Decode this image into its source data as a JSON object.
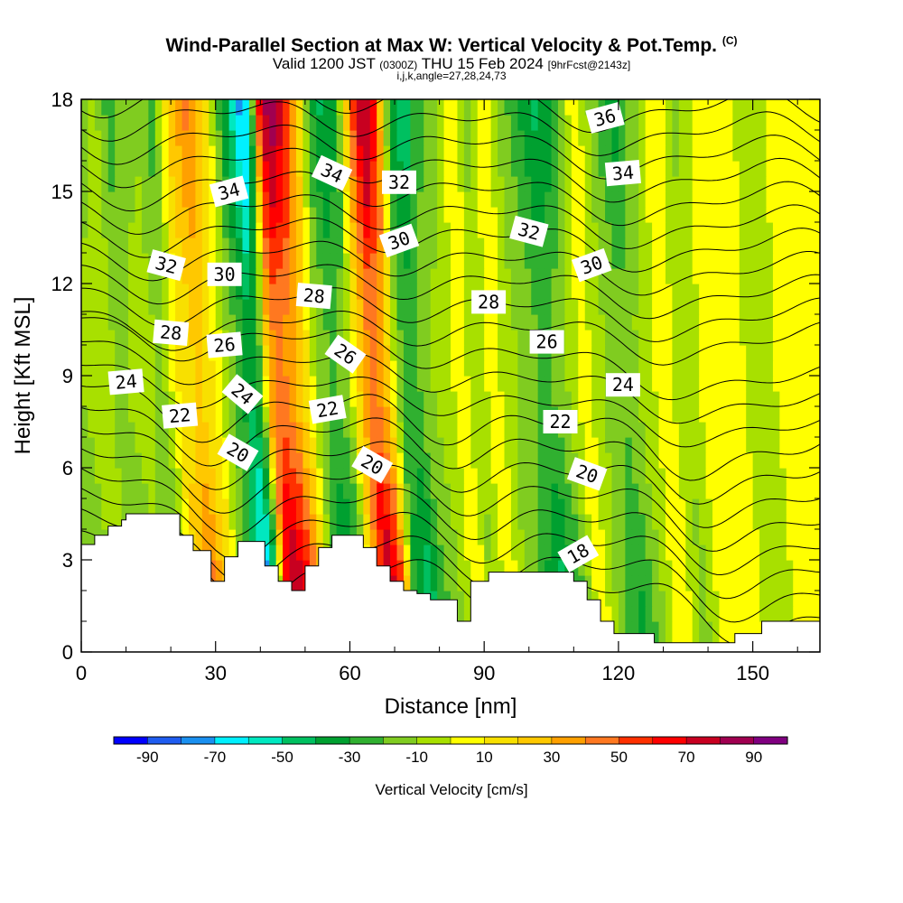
{
  "title": {
    "main": "Wind-Parallel Section at Max W: Vertical Velocity & Pot.Temp.",
    "copyright": "(C)",
    "valid_prefix": "Valid 1200 JST",
    "valid_utc": "(0300Z)",
    "valid_date": "THU 15 Feb 2024",
    "forecast": "[9hrFcst@2143z]",
    "indices": "i,j,k,angle=27,28,24,73"
  },
  "chart_data": {
    "type": "heatmap",
    "xlabel": "Distance [nm]",
    "ylabel": "Height [Kft MSL]",
    "xlim": [
      0,
      165
    ],
    "ylim": [
      0,
      18
    ],
    "x_ticks": [
      0,
      30,
      60,
      90,
      120,
      150
    ],
    "y_ticks": [
      0,
      3,
      6,
      9,
      12,
      15,
      18
    ],
    "colorbar": {
      "label": "Vertical Velocity [cm/s]",
      "tick_labels": [
        -90,
        -70,
        -50,
        -30,
        -10,
        10,
        30,
        50,
        70,
        90
      ],
      "levels": [
        -100,
        -90,
        -80,
        -70,
        -60,
        -50,
        -40,
        -30,
        -20,
        -10,
        0,
        10,
        20,
        30,
        40,
        50,
        60,
        70,
        80,
        90,
        100
      ],
      "colors": [
        "#0000ff",
        "#1f5cf0",
        "#1a90f0",
        "#00f0ff",
        "#00e8c0",
        "#00c060",
        "#00a030",
        "#30b030",
        "#80cc20",
        "#a8e000",
        "#ffff00",
        "#f8e000",
        "#ffc800",
        "#ffa000",
        "#ff7820",
        "#ff3000",
        "#ff0000",
        "#c80020",
        "#a00050",
        "#800080"
      ]
    },
    "vertical_velocity_bands": [
      {
        "x": 0,
        "w": -20
      },
      {
        "x": 5,
        "w": -5
      },
      {
        "x": 8,
        "w": -25
      },
      {
        "x": 14,
        "w": -10
      },
      {
        "x": 18,
        "w": -25
      },
      {
        "x": 22,
        "w": 25
      },
      {
        "x": 26,
        "w": 45
      },
      {
        "x": 30,
        "w": 15
      },
      {
        "x": 33,
        "w": -25
      },
      {
        "x": 36,
        "w": -55
      },
      {
        "x": 38,
        "w": -80
      },
      {
        "x": 40,
        "w": -40
      },
      {
        "x": 42,
        "w": 65
      },
      {
        "x": 44,
        "w": 90
      },
      {
        "x": 47,
        "w": 70
      },
      {
        "x": 50,
        "w": 30
      },
      {
        "x": 53,
        "w": -25
      },
      {
        "x": 56,
        "w": -45
      },
      {
        "x": 59,
        "w": -30
      },
      {
        "x": 62,
        "w": 40
      },
      {
        "x": 65,
        "w": 90
      },
      {
        "x": 68,
        "w": 55
      },
      {
        "x": 71,
        "w": -35
      },
      {
        "x": 74,
        "w": -50
      },
      {
        "x": 77,
        "w": -25
      },
      {
        "x": 80,
        "w": -15
      },
      {
        "x": 85,
        "w": 10
      },
      {
        "x": 88,
        "w": -15
      },
      {
        "x": 92,
        "w": 10
      },
      {
        "x": 96,
        "w": -15
      },
      {
        "x": 100,
        "w": -30
      },
      {
        "x": 104,
        "w": -45
      },
      {
        "x": 108,
        "w": -25
      },
      {
        "x": 112,
        "w": 10
      },
      {
        "x": 117,
        "w": -20
      },
      {
        "x": 121,
        "w": -35
      },
      {
        "x": 125,
        "w": -15
      },
      {
        "x": 130,
        "w": 10
      },
      {
        "x": 135,
        "w": -15
      },
      {
        "x": 140,
        "w": 10
      },
      {
        "x": 146,
        "w": 5
      },
      {
        "x": 152,
        "w": -10
      },
      {
        "x": 158,
        "w": 10
      },
      {
        "x": 165,
        "w": 5
      }
    ],
    "terrain": [
      [
        0,
        3.5
      ],
      [
        3,
        3.5
      ],
      [
        3,
        3.8
      ],
      [
        6,
        3.8
      ],
      [
        6,
        4.1
      ],
      [
        9,
        4.1
      ],
      [
        9,
        4.3
      ],
      [
        10,
        4.3
      ],
      [
        10,
        4.5
      ],
      [
        22,
        4.5
      ],
      [
        22,
        3.8
      ],
      [
        25,
        3.8
      ],
      [
        25,
        3.3
      ],
      [
        29,
        3.3
      ],
      [
        29,
        2.3
      ],
      [
        32,
        2.3
      ],
      [
        32,
        3.1
      ],
      [
        35,
        3.1
      ],
      [
        35,
        3.6
      ],
      [
        41,
        3.6
      ],
      [
        41,
        2.8
      ],
      [
        44,
        2.8
      ],
      [
        44,
        2.3
      ],
      [
        47,
        2.3
      ],
      [
        47,
        2.0
      ],
      [
        50,
        2.0
      ],
      [
        50,
        2.8
      ],
      [
        53,
        2.8
      ],
      [
        53,
        3.4
      ],
      [
        56,
        3.4
      ],
      [
        56,
        3.8
      ],
      [
        63,
        3.8
      ],
      [
        63,
        3.4
      ],
      [
        66,
        3.4
      ],
      [
        66,
        2.8
      ],
      [
        69,
        2.8
      ],
      [
        69,
        2.3
      ],
      [
        72,
        2.3
      ],
      [
        72,
        2.0
      ],
      [
        75,
        2.0
      ],
      [
        75,
        1.9
      ],
      [
        78,
        1.9
      ],
      [
        78,
        1.7
      ],
      [
        84,
        1.7
      ],
      [
        84,
        1.0
      ],
      [
        87,
        1.0
      ],
      [
        87,
        2.3
      ],
      [
        91,
        2.3
      ],
      [
        91,
        2.6
      ],
      [
        110,
        2.6
      ],
      [
        110,
        2.3
      ],
      [
        113,
        2.3
      ],
      [
        113,
        1.7
      ],
      [
        116,
        1.7
      ],
      [
        116,
        1.0
      ],
      [
        119,
        1.0
      ],
      [
        119,
        0.6
      ],
      [
        128,
        0.6
      ],
      [
        128,
        0.3
      ],
      [
        146,
        0.3
      ],
      [
        146,
        0.6
      ],
      [
        152,
        0.6
      ],
      [
        152,
        1.0
      ],
      [
        165,
        1.0
      ]
    ],
    "theta_contours": {
      "units": "C",
      "levels": [
        18,
        20,
        22,
        24,
        26,
        28,
        30,
        32,
        34,
        36
      ],
      "labels": [
        {
          "text": "24",
          "x": 10,
          "y": 8.8,
          "rot": -5
        },
        {
          "text": "22",
          "x": 22,
          "y": 7.7,
          "rot": -5
        },
        {
          "text": "20",
          "x": 35,
          "y": 6.5,
          "rot": 30
        },
        {
          "text": "24",
          "x": 36,
          "y": 8.4,
          "rot": 40
        },
        {
          "text": "26",
          "x": 32,
          "y": 10.0,
          "rot": -5
        },
        {
          "text": "30",
          "x": 32,
          "y": 12.3,
          "rot": 0
        },
        {
          "text": "32",
          "x": 19,
          "y": 12.6,
          "rot": 15
        },
        {
          "text": "28",
          "x": 20,
          "y": 10.4,
          "rot": 5
        },
        {
          "text": "34",
          "x": 33,
          "y": 15.0,
          "rot": -15
        },
        {
          "text": "28",
          "x": 52,
          "y": 11.6,
          "rot": 5
        },
        {
          "text": "26",
          "x": 59,
          "y": 9.7,
          "rot": 35
        },
        {
          "text": "22",
          "x": 55,
          "y": 7.9,
          "rot": -10
        },
        {
          "text": "20",
          "x": 65,
          "y": 6.1,
          "rot": 30
        },
        {
          "text": "34",
          "x": 56,
          "y": 15.6,
          "rot": 25
        },
        {
          "text": "32",
          "x": 71,
          "y": 15.3,
          "rot": 0
        },
        {
          "text": "30",
          "x": 71,
          "y": 13.4,
          "rot": -20
        },
        {
          "text": "28",
          "x": 91,
          "y": 11.4,
          "rot": 0
        },
        {
          "text": "32",
          "x": 100,
          "y": 13.7,
          "rot": 15
        },
        {
          "text": "26",
          "x": 104,
          "y": 10.1,
          "rot": 0
        },
        {
          "text": "22",
          "x": 107,
          "y": 7.5,
          "rot": 0
        },
        {
          "text": "20",
          "x": 113,
          "y": 5.8,
          "rot": 20
        },
        {
          "text": "18",
          "x": 111,
          "y": 3.2,
          "rot": -30
        },
        {
          "text": "24",
          "x": 121,
          "y": 8.7,
          "rot": 0
        },
        {
          "text": "30",
          "x": 114,
          "y": 12.6,
          "rot": -20
        },
        {
          "text": "34",
          "x": 121,
          "y": 15.6,
          "rot": -5
        },
        {
          "text": "36",
          "x": 117,
          "y": 17.4,
          "rot": -15
        }
      ]
    }
  }
}
